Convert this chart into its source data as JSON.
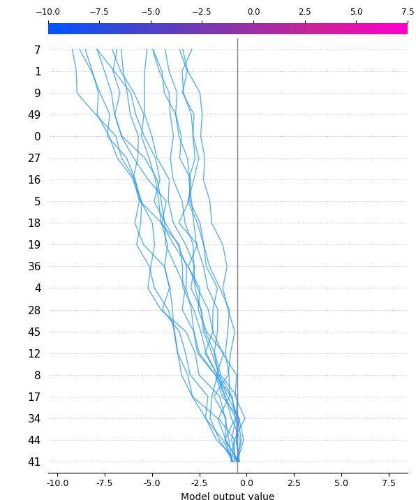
{
  "y_labels": [
    "7",
    "1",
    "9",
    "49",
    "0",
    "27",
    "16",
    "5",
    "18",
    "19",
    "36",
    "4",
    "28",
    "45",
    "12",
    "8",
    "17",
    "34",
    "44",
    "41"
  ],
  "xlim": [
    -10.5,
    8.5
  ],
  "x_ticks": [
    -10.0,
    -7.5,
    -5.0,
    -2.5,
    0.0,
    2.5,
    5.0,
    7.5
  ],
  "xlabel": "Model output value",
  "vline_x": -0.5,
  "colorbar_vmin": -10.0,
  "colorbar_vmax": 7.5,
  "line_color": "#2196f3",
  "background_color": "#ffffff",
  "grid_color": "#bbbbbb",
  "figsize": [
    5.96,
    7.16
  ],
  "dpi": 100,
  "n_lines": 15,
  "random_seed": 7
}
